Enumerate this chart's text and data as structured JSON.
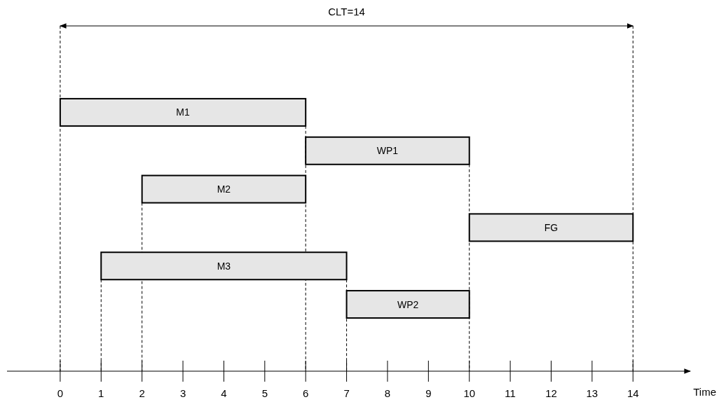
{
  "chart_data": {
    "type": "bar",
    "orientation": "horizontal",
    "categories": [
      "M1",
      "WP1",
      "M2",
      "FG",
      "M3",
      "WP2"
    ],
    "base": [
      0,
      6,
      2,
      10,
      1,
      7
    ],
    "values": [
      6,
      4,
      4,
      4,
      6,
      3
    ],
    "color": "#e6e6e6",
    "xlim": [
      -1.3,
      15.4
    ],
    "xticks": [
      0,
      1,
      2,
      3,
      4,
      5,
      6,
      7,
      8,
      9,
      10,
      11,
      12,
      13,
      14
    ],
    "xlabel": "Time",
    "ref_lines": [
      {
        "axis": "x",
        "value": 0,
        "line_style": "dashed"
      },
      {
        "axis": "x",
        "value": 1,
        "line_style": "dashed"
      },
      {
        "axis": "x",
        "value": 2,
        "line_style": "dashed"
      },
      {
        "axis": "x",
        "value": 6,
        "line_style": "dashed"
      },
      {
        "axis": "x",
        "value": 7,
        "line_style": "dashed"
      },
      {
        "axis": "x",
        "value": 10,
        "line_style": "dashed"
      },
      {
        "axis": "x",
        "value": 14,
        "line_style": "dashed"
      }
    ],
    "annotations": [
      "CLT=14"
    ]
  }
}
